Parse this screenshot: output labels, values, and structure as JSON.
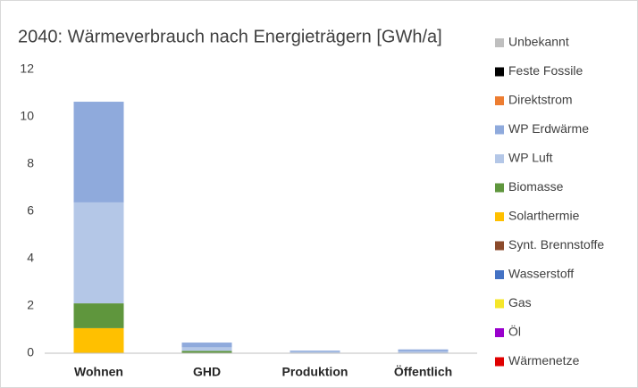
{
  "chart_data": {
    "type": "stacked_bar",
    "title": "2040: Wärmeverbrauch nach Energieträgern [GWh/a]",
    "categories": [
      "Wohnen",
      "GHD",
      "Produktion",
      "Öffentlich"
    ],
    "series": [
      {
        "name": "Wärmenetze",
        "color": "#e00000",
        "values": [
          0,
          0,
          0,
          0
        ]
      },
      {
        "name": "Öl",
        "color": "#9900cc",
        "values": [
          0,
          0,
          0,
          0
        ]
      },
      {
        "name": "Gas",
        "color": "#f5e62a",
        "values": [
          0,
          0,
          0,
          0
        ]
      },
      {
        "name": "Wasserstoff",
        "color": "#4472c4",
        "values": [
          0,
          0,
          0,
          0
        ]
      },
      {
        "name": "Synt. Brennstoffe",
        "color": "#8b4a2b",
        "values": [
          0,
          0,
          0,
          0
        ]
      },
      {
        "name": "Solarthermie",
        "color": "#ffc000",
        "values": [
          1.06,
          0.02,
          0,
          0
        ]
      },
      {
        "name": "Biomasse",
        "color": "#5f963d",
        "values": [
          1.05,
          0.08,
          0.01,
          0.01
        ]
      },
      {
        "name": "WP Luft",
        "color": "#b4c7e7",
        "values": [
          4.27,
          0.15,
          0.05,
          0.07
        ]
      },
      {
        "name": "WP Erdwärme",
        "color": "#8faadc",
        "values": [
          4.26,
          0.2,
          0.05,
          0.08
        ]
      },
      {
        "name": "Direktstrom",
        "color": "#ed7d31",
        "values": [
          0,
          0,
          0,
          0
        ]
      },
      {
        "name": "Feste Fossile",
        "color": "#000000",
        "values": [
          0,
          0,
          0,
          0
        ]
      },
      {
        "name": "Unbekannt",
        "color": "#bfbfbf",
        "values": [
          0,
          0,
          0,
          0
        ]
      }
    ],
    "ylim": [
      0,
      12
    ],
    "yticks": [
      0,
      2,
      4,
      6,
      8,
      10,
      12
    ],
    "grid": false,
    "legend": "right"
  }
}
